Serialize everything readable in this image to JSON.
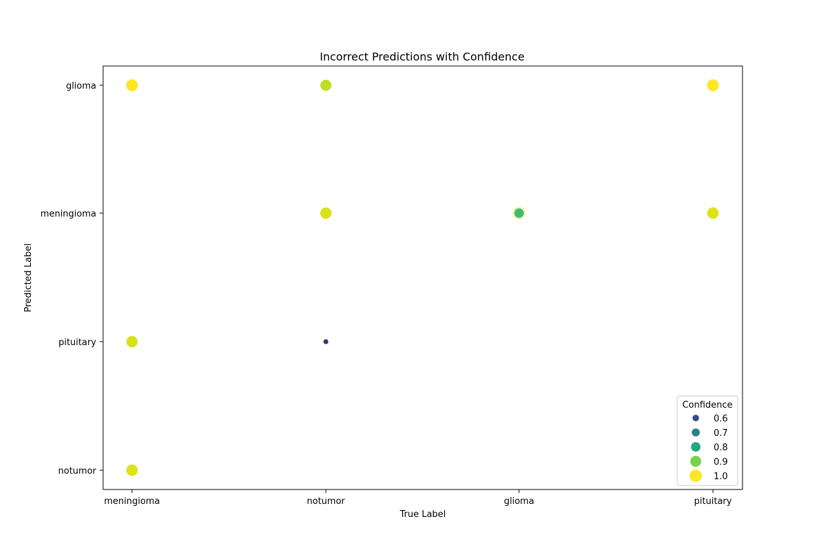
{
  "chart_data": {
    "type": "scatter",
    "title": "Incorrect Predictions with Confidence",
    "xlabel": "True Label",
    "ylabel": "Predicted Label",
    "x_categories": [
      "meningioma",
      "notumor",
      "glioma",
      "pituitary"
    ],
    "y_categories": [
      "glioma",
      "meningioma",
      "pituitary",
      "notumor"
    ],
    "points": [
      {
        "x": "meningioma",
        "y": "glioma",
        "confidence": 1.0,
        "color": "#fde725"
      },
      {
        "x": "meningioma",
        "y": "pituitary",
        "confidence": 0.97,
        "color": "#d8e219"
      },
      {
        "x": "meningioma",
        "y": "notumor",
        "confidence": 0.98,
        "color": "#dde318"
      },
      {
        "x": "notumor",
        "y": "glioma",
        "confidence": 0.95,
        "color": "#bddf26"
      },
      {
        "x": "notumor",
        "y": "meningioma",
        "confidence": 0.97,
        "color": "#d8e219"
      },
      {
        "x": "notumor",
        "y": "pituitary",
        "confidence": 0.53,
        "color": "#472d7b"
      },
      {
        "x": "glioma",
        "y": "meningioma",
        "confidence": 1.0,
        "color": "#fde725"
      },
      {
        "x": "glioma",
        "y": "meningioma",
        "confidence": 0.84,
        "color": "#3dbc74"
      },
      {
        "x": "pituitary",
        "y": "glioma",
        "confidence": 1.0,
        "color": "#fde725"
      },
      {
        "x": "pituitary",
        "y": "meningioma",
        "confidence": 0.98,
        "color": "#dde318"
      }
    ],
    "legend": {
      "title": "Confidence",
      "placement": "lower-right",
      "entries": [
        {
          "label": "0.6",
          "value": 0.6,
          "color": "#3e4989"
        },
        {
          "label": "0.7",
          "value": 0.7,
          "color": "#26828e"
        },
        {
          "label": "0.8",
          "value": 0.8,
          "color": "#22a884"
        },
        {
          "label": "0.9",
          "value": 0.9,
          "color": "#7ad151"
        },
        {
          "label": "1.0",
          "value": 1.0,
          "color": "#fde725"
        }
      ]
    },
    "grid": false
  }
}
